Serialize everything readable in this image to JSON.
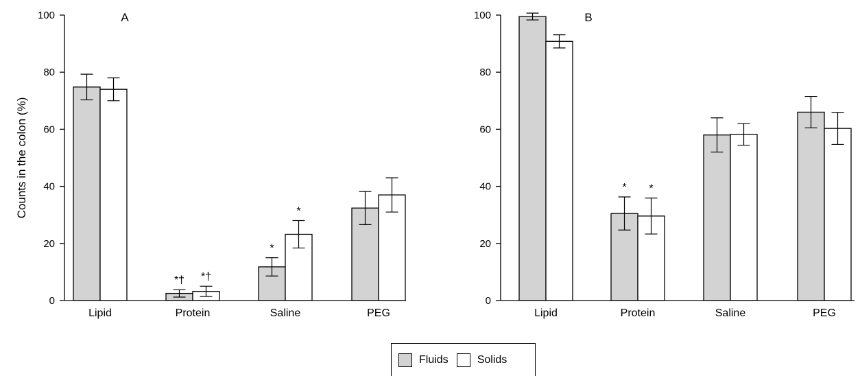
{
  "colors": {
    "fluids": "#d3d3d3",
    "solids": "#ffffff",
    "axis": "#000000"
  },
  "ylabel": "Counts in the colon (%)",
  "legend": [
    {
      "name": "Fluids",
      "color": "#d3d3d3"
    },
    {
      "name": "Solids",
      "color": "#ffffff"
    }
  ],
  "chart_data": [
    {
      "type": "bar",
      "panel": "A",
      "ylabel": "Counts in the colon (%)",
      "ylim": [
        0,
        100
      ],
      "yticks": [
        "0",
        "20",
        "40",
        "60",
        "80",
        "100"
      ],
      "categories": [
        "Lipid",
        "Protein",
        "Saline",
        "PEG"
      ],
      "series": [
        {
          "name": "Fluids",
          "values": [
            74.8,
            2.5,
            11.8,
            32.4
          ],
          "errors": [
            4.5,
            1.3,
            3.2,
            5.8
          ],
          "markers": [
            "",
            "*†",
            "*",
            ""
          ]
        },
        {
          "name": "Solids",
          "values": [
            74.0,
            3.2,
            23.2,
            37.0
          ],
          "errors": [
            4.0,
            1.8,
            4.8,
            6.0
          ],
          "markers": [
            "",
            "*†",
            "*",
            ""
          ]
        }
      ]
    },
    {
      "type": "bar",
      "panel": "B",
      "ylim": [
        0,
        100
      ],
      "yticks": [
        "0",
        "20",
        "40",
        "60",
        "80",
        "100"
      ],
      "categories": [
        "Lipid",
        "Protein",
        "Saline",
        "PEG"
      ],
      "series": [
        {
          "name": "Fluids",
          "values": [
            99.5,
            30.5,
            58.0,
            66.0
          ],
          "errors": [
            1.2,
            5.8,
            6.0,
            5.5
          ],
          "markers": [
            "",
            "*",
            "",
            ""
          ]
        },
        {
          "name": "Solids",
          "values": [
            90.8,
            29.6,
            58.2,
            60.3
          ],
          "errors": [
            2.3,
            6.3,
            3.8,
            5.6
          ],
          "markers": [
            "",
            "*",
            "",
            ""
          ]
        }
      ]
    }
  ]
}
